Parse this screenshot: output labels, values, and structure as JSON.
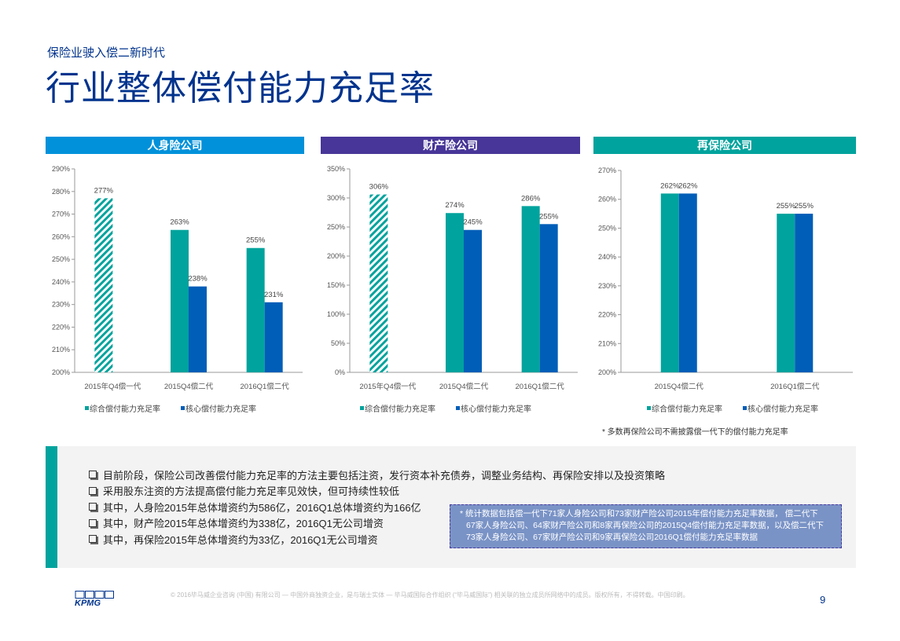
{
  "header": {
    "subtitle": "保险业驶入偿二新时代",
    "title": "行业整体偿付能力充足率"
  },
  "charts": [
    {
      "heading": "人身险公司",
      "heading_color": "#0091DA",
      "ylim": [
        200,
        290
      ],
      "step": 10,
      "categories": [
        "2015年Q4偿一代",
        "2015Q4偿二代",
        "2016Q1偿二代"
      ],
      "series": [
        {
          "name": "综合偿付能力充足率",
          "color": "#00A39D",
          "values": [
            277,
            263,
            255
          ]
        },
        {
          "name": "核心偿付能力充足率",
          "color": "#005EB8",
          "values": [
            null,
            238,
            231
          ]
        }
      ],
      "labels": [
        [
          "277%",
          "263%",
          "255%"
        ],
        [
          null,
          "238%",
          "231%"
        ]
      ],
      "hatched_first": true
    },
    {
      "heading": "财产险公司",
      "heading_color": "#483698",
      "ylim": [
        0,
        350
      ],
      "step": 50,
      "categories": [
        "2015年Q4偿一代",
        "2015Q4偿二代",
        "2016Q1偿二代"
      ],
      "series": [
        {
          "name": "综合偿付能力充足率",
          "color": "#00A39D",
          "values": [
            306,
            274,
            286
          ]
        },
        {
          "name": "核心偿付能力充足率",
          "color": "#005EB8",
          "values": [
            null,
            245,
            255
          ]
        }
      ],
      "labels": [
        [
          "306%",
          "274%",
          "286%"
        ],
        [
          null,
          "245%",
          "255%"
        ]
      ],
      "hatched_first": true
    },
    {
      "heading": "再保险公司",
      "heading_color": "#00A39D",
      "ylim": [
        200,
        270
      ],
      "step": 10,
      "categories": [
        "2015Q4偿二代",
        "2016Q1偿二代"
      ],
      "series": [
        {
          "name": "综合偿付能力充足率",
          "color": "#00A39D",
          "values": [
            262,
            255
          ]
        },
        {
          "name": "核心偿付能力充足率",
          "color": "#005EB8",
          "values": [
            262,
            255
          ]
        }
      ],
      "labels": [
        [
          "262%",
          "255%"
        ],
        [
          "262%",
          "255%"
        ]
      ],
      "hatched_first": false
    }
  ],
  "note3": "*  多数再保险公司不需披露偿一代下的偿付能力充足率",
  "bullets": [
    "目前阶段，保险公司改善偿付能力充足率的方法主要包括注资，发行资本补充债券，调整业务结构、再保险安排以及投资策略",
    "采用股东注资的方法提高偿付能力充足率见效快，但可持续性较低",
    "其中，人身险2015年总体增资约为586亿，2016Q1总体增资约为166亿",
    "其中，财产险2015年总体增资约为338亿，2016Q1无公司增资",
    "其中，再保险2015年总体增资约为33亿，2016Q1无公司增资"
  ],
  "footnote": [
    "*  统计数据包括偿一代下71家人身险公司和73家财产险公司2015年偿付能力充足率数据， 偿二代下",
    "67家人身险公司、64家财产险公司和8家再保险公司的2015Q4偿付能力充足率数据，以及偿二代下",
    "73家人身险公司、67家财产险公司和9家再保险公司2016Q1偿付能力充足率数据"
  ],
  "footer": {
    "logo": "KPMG",
    "copyright": "© 2016毕马威企业咨询 (中国) 有限公司 — 中国外商独资企业，是与瑞士实体 — 毕马威国际合作组织 (“毕马威国际”) 相关联的独立成员所网络中的成员。版权所有，不得转载。中国印刷。",
    "page": "9"
  }
}
